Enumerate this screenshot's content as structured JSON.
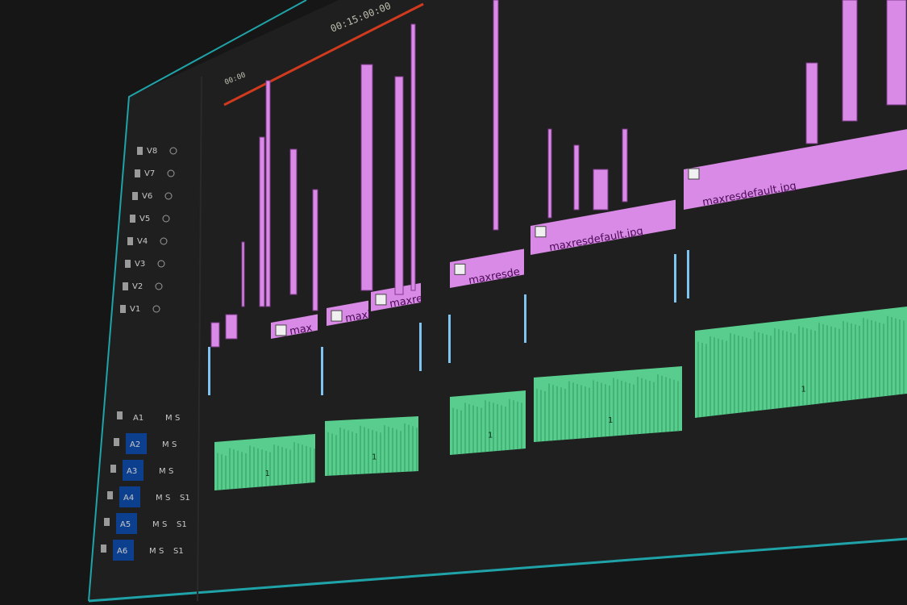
{
  "timeline": {
    "timecode_main": "00:15:00:00",
    "timecode_start": "00:00",
    "playhead_color": "#d23a1e",
    "video_clip_color": "#d98ae6",
    "audio_clip_color": "#5fe09a",
    "panel_border_color": "#1fa3a8"
  },
  "video_tracks": [
    "V8",
    "V7",
    "V6",
    "V5",
    "V4",
    "V3",
    "V2",
    "V1"
  ],
  "audio_tracks": [
    {
      "name": "A1",
      "controls": [
        "M",
        "S"
      ]
    },
    {
      "name": "A2",
      "controls": [
        "M",
        "S"
      ]
    },
    {
      "name": "A3",
      "controls": [
        "M",
        "S"
      ]
    },
    {
      "name": "A4",
      "controls": [
        "M",
        "S"
      ],
      "extra": "S1"
    },
    {
      "name": "A5",
      "controls": [
        "M",
        "S"
      ],
      "extra": "S1"
    },
    {
      "name": "A6",
      "controls": [
        "M",
        "S"
      ],
      "extra": "S1"
    }
  ],
  "clips": [
    {
      "label": "max",
      "icon": "fx-icon"
    },
    {
      "label": "maxi",
      "icon": "fx-icon"
    },
    {
      "label": "maxre",
      "icon": "fx-icon"
    },
    {
      "label": "maxresde",
      "icon": "fx-icon"
    },
    {
      "label": "maxresdefault.jpg",
      "icon": "fx-icon"
    },
    {
      "label": "maxresdefault.jpg",
      "icon": "fx-icon"
    }
  ],
  "audio_clip_marker": "1"
}
